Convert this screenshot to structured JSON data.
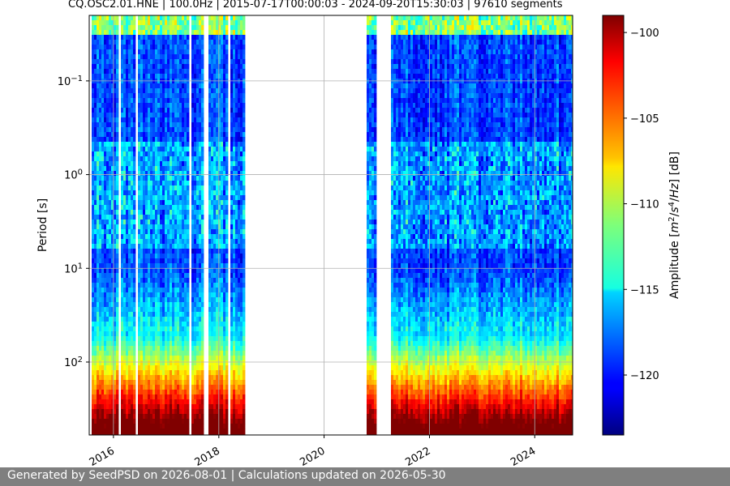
{
  "chart_data": {
    "type": "heatmap",
    "title": "CQ.OSC2.01.HNE | 100.0Hz | 2015-07-17T00:00:03 - 2024-09-20T15:30:03 | 97610 segments",
    "ylabel": "Period [s]",
    "xlabel": "",
    "x_range": [
      "2015-07-17",
      "2024-09-20"
    ],
    "y_scale": "log",
    "y_inverted": true,
    "y_range": [
      0.02,
      600
    ],
    "x_ticks": [
      "2016",
      "2018",
      "2020",
      "2022",
      "2024"
    ],
    "y_ticks": [
      "10^-1",
      "10^0",
      "10^1",
      "10^2"
    ],
    "grid": true,
    "data_gaps": [
      [
        "2018-07-01",
        "2020-10-20"
      ],
      [
        "2021-01-05",
        "2021-04-01"
      ]
    ],
    "colorbar": {
      "label": "Amplitude [m²/s⁴/Hz] [dB]",
      "colormap": "jet",
      "range": [
        -123.5,
        -99
      ],
      "ticks": [
        -100,
        -105,
        -110,
        -115,
        -120
      ],
      "tick_labels": [
        "−100",
        "−105",
        "−110",
        "−115",
        "−120"
      ]
    }
  },
  "footer": {
    "text": "Generated by SeedPSD on 2026-08-01 | Calculations updated on 2026-05-30"
  }
}
